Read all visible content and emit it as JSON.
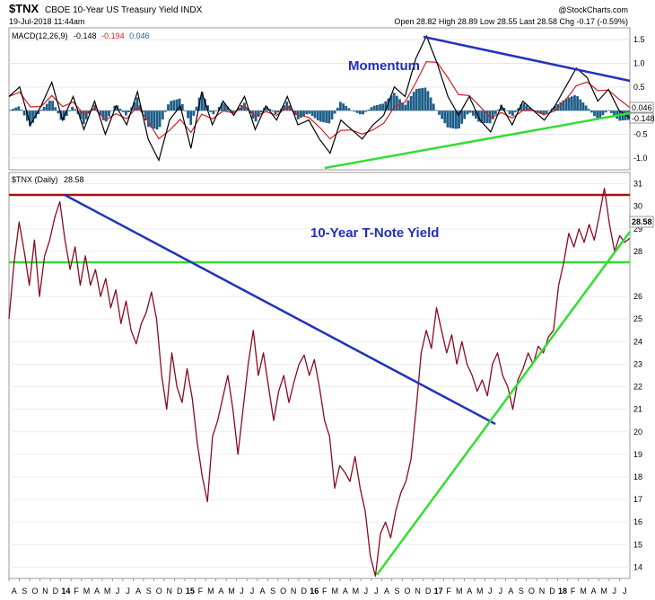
{
  "header": {
    "symbol": "$TNX",
    "name": "CBOE 10-Year US Treasury Yield INDX",
    "date": "19-Jul-2018 11:44am",
    "watermark": "@StockCharts.com",
    "quote": "Open 28.82  High 28.89  Low 28.55  Last 28.58  Chg -0.17 (-0.59%)"
  },
  "chart_data": [
    {
      "type": "line",
      "panel": "macd",
      "legend_label": "MACD(12,26,9)",
      "legend_values": [
        "-0.148",
        "-0.194",
        "0.046"
      ],
      "series_colors": [
        "#000000",
        "#d02020",
        "#1f5f8a"
      ],
      "annotation": "Momentum",
      "annotation_color": "#1f2fbf",
      "yticks": [
        "1.5",
        "1.0",
        "0.5",
        "-0.5",
        "-1.0"
      ],
      "ylim": [
        -1.25,
        1.75
      ],
      "last_labels": [
        "0.046",
        "-0.148"
      ],
      "points": [
        {
          "x": 0.0,
          "y": 0.3
        },
        {
          "x": 1.0,
          "y": 0.5
        },
        {
          "x": 2.0,
          "y": -0.3
        },
        {
          "x": 3.0,
          "y": 0.1
        },
        {
          "x": 4.0,
          "y": 0.6
        },
        {
          "x": 5.0,
          "y": -0.2
        },
        {
          "x": 6.0,
          "y": 0.3
        },
        {
          "x": 7.0,
          "y": -0.4
        },
        {
          "x": 8.0,
          "y": 0.2
        },
        {
          "x": 9.0,
          "y": -0.5
        },
        {
          "x": 10.0,
          "y": 0.1
        },
        {
          "x": 11.0,
          "y": -0.3
        },
        {
          "x": 12.0,
          "y": 0.4
        },
        {
          "x": 13.0,
          "y": -0.6
        },
        {
          "x": 14.0,
          "y": -1.05
        },
        {
          "x": 15.0,
          "y": -0.2
        },
        {
          "x": 16.0,
          "y": 0.1
        },
        {
          "x": 17.0,
          "y": -0.8
        },
        {
          "x": 18.0,
          "y": 0.4
        },
        {
          "x": 19.0,
          "y": -0.3
        },
        {
          "x": 20.0,
          "y": 0.2
        },
        {
          "x": 21.0,
          "y": -0.1
        },
        {
          "x": 22.0,
          "y": 0.3
        },
        {
          "x": 23.0,
          "y": -0.4
        },
        {
          "x": 24.0,
          "y": 0.1
        },
        {
          "x": 25.0,
          "y": -0.2
        },
        {
          "x": 26.0,
          "y": 0.3
        },
        {
          "x": 27.0,
          "y": -0.3
        },
        {
          "x": 28.0,
          "y": -0.2
        },
        {
          "x": 29.0,
          "y": -0.6
        },
        {
          "x": 30.0,
          "y": -0.9
        },
        {
          "x": 31.0,
          "y": -0.2
        },
        {
          "x": 32.0,
          "y": -0.4
        },
        {
          "x": 33.0,
          "y": -0.6
        },
        {
          "x": 34.0,
          "y": -0.3
        },
        {
          "x": 35.0,
          "y": -0.1
        },
        {
          "x": 36.0,
          "y": 0.5
        },
        {
          "x": 37.0,
          "y": 0.3
        },
        {
          "x": 38.0,
          "y": 1.1
        },
        {
          "x": 39.0,
          "y": 1.58
        },
        {
          "x": 40.0,
          "y": 1.0
        },
        {
          "x": 41.0,
          "y": 0.3
        },
        {
          "x": 42.0,
          "y": -0.1
        },
        {
          "x": 43.0,
          "y": 0.3
        },
        {
          "x": 44.0,
          "y": -0.2
        },
        {
          "x": 45.0,
          "y": -0.45
        },
        {
          "x": 46.0,
          "y": 0.1
        },
        {
          "x": 47.0,
          "y": -0.3
        },
        {
          "x": 48.0,
          "y": 0.2
        },
        {
          "x": 49.0,
          "y": 0.0
        },
        {
          "x": 50.0,
          "y": -0.2
        },
        {
          "x": 51.0,
          "y": 0.1
        },
        {
          "x": 52.0,
          "y": 0.5
        },
        {
          "x": 53.0,
          "y": 0.9
        },
        {
          "x": 54.0,
          "y": 0.7
        },
        {
          "x": 55.0,
          "y": 0.2
        },
        {
          "x": 56.0,
          "y": 0.45
        },
        {
          "x": 57.0,
          "y": 0.0
        },
        {
          "x": 58.0,
          "y": -0.148
        }
      ]
    },
    {
      "type": "line",
      "panel": "price",
      "legend_label": "$TNX (Daily)",
      "legend_value": "28.58",
      "series_colors": [
        "#000000",
        "#8b0a1f"
      ],
      "annotation": "10-Year T-Note Yield",
      "annotation_color": "#1f2fbf",
      "yticks": [
        "31",
        "30",
        "29",
        "28",
        "26",
        "25",
        "24",
        "23",
        "22",
        "21",
        "20",
        "19",
        "18",
        "17",
        "16",
        "15",
        "14"
      ],
      "ylim": [
        13.5,
        31.5
      ],
      "last_label": "28.58",
      "x_labels": [
        "A",
        "S",
        "O",
        "N",
        "D",
        "14",
        "F",
        "M",
        "A",
        "M",
        "J",
        "J",
        "A",
        "S",
        "O",
        "N",
        "D",
        "15",
        "F",
        "M",
        "A",
        "M",
        "J",
        "J",
        "A",
        "S",
        "O",
        "N",
        "D",
        "16",
        "F",
        "M",
        "A",
        "M",
        "J",
        "J",
        "A",
        "S",
        "O",
        "N",
        "D",
        "17",
        "F",
        "M",
        "A",
        "M",
        "J",
        "J",
        "A",
        "S",
        "O",
        "N",
        "D",
        "18",
        "F",
        "M",
        "A",
        "M",
        "J",
        "J"
      ],
      "points": [
        {
          "x": 0.0,
          "y": 25.0
        },
        {
          "x": 0.5,
          "y": 27.5
        },
        {
          "x": 1.0,
          "y": 29.3
        },
        {
          "x": 1.5,
          "y": 28.0
        },
        {
          "x": 2.0,
          "y": 26.5
        },
        {
          "x": 2.5,
          "y": 28.5
        },
        {
          "x": 3.0,
          "y": 26.0
        },
        {
          "x": 3.5,
          "y": 27.8
        },
        {
          "x": 4.0,
          "y": 28.5
        },
        {
          "x": 4.5,
          "y": 29.5
        },
        {
          "x": 5.0,
          "y": 30.2
        },
        {
          "x": 5.5,
          "y": 28.5
        },
        {
          "x": 6.0,
          "y": 27.2
        },
        {
          "x": 6.5,
          "y": 28.2
        },
        {
          "x": 7.0,
          "y": 26.5
        },
        {
          "x": 7.5,
          "y": 27.8
        },
        {
          "x": 8.0,
          "y": 26.5
        },
        {
          "x": 8.5,
          "y": 27.2
        },
        {
          "x": 9.0,
          "y": 26.0
        },
        {
          "x": 9.5,
          "y": 26.8
        },
        {
          "x": 10.0,
          "y": 25.5
        },
        {
          "x": 10.5,
          "y": 26.3
        },
        {
          "x": 11.0,
          "y": 24.8
        },
        {
          "x": 11.5,
          "y": 25.8
        },
        {
          "x": 12.0,
          "y": 24.5
        },
        {
          "x": 12.5,
          "y": 23.9
        },
        {
          "x": 13.0,
          "y": 24.8
        },
        {
          "x": 13.5,
          "y": 25.3
        },
        {
          "x": 14.0,
          "y": 26.2
        },
        {
          "x": 14.5,
          "y": 25.0
        },
        {
          "x": 15.0,
          "y": 22.5
        },
        {
          "x": 15.5,
          "y": 21.0
        },
        {
          "x": 16.0,
          "y": 23.5
        },
        {
          "x": 16.5,
          "y": 22.0
        },
        {
          "x": 17.0,
          "y": 21.3
        },
        {
          "x": 17.5,
          "y": 22.8
        },
        {
          "x": 18.0,
          "y": 21.5
        },
        {
          "x": 18.5,
          "y": 19.5
        },
        {
          "x": 19.0,
          "y": 18.0
        },
        {
          "x": 19.5,
          "y": 16.9
        },
        {
          "x": 20.0,
          "y": 19.8
        },
        {
          "x": 20.5,
          "y": 20.5
        },
        {
          "x": 21.0,
          "y": 21.5
        },
        {
          "x": 21.5,
          "y": 22.5
        },
        {
          "x": 22.0,
          "y": 21.0
        },
        {
          "x": 22.5,
          "y": 19.0
        },
        {
          "x": 23.0,
          "y": 21.0
        },
        {
          "x": 23.5,
          "y": 23.0
        },
        {
          "x": 24.0,
          "y": 24.5
        },
        {
          "x": 24.5,
          "y": 22.5
        },
        {
          "x": 25.0,
          "y": 23.5
        },
        {
          "x": 25.5,
          "y": 22.0
        },
        {
          "x": 26.0,
          "y": 20.5
        },
        {
          "x": 26.5,
          "y": 21.8
        },
        {
          "x": 27.0,
          "y": 22.5
        },
        {
          "x": 27.5,
          "y": 21.3
        },
        {
          "x": 28.0,
          "y": 22.2
        },
        {
          "x": 28.5,
          "y": 23.0
        },
        {
          "x": 29.0,
          "y": 23.4
        },
        {
          "x": 29.5,
          "y": 22.5
        },
        {
          "x": 30.0,
          "y": 23.2
        },
        {
          "x": 30.5,
          "y": 22.0
        },
        {
          "x": 31.0,
          "y": 20.5
        },
        {
          "x": 31.5,
          "y": 19.8
        },
        {
          "x": 32.0,
          "y": 17.5
        },
        {
          "x": 32.5,
          "y": 18.5
        },
        {
          "x": 33.0,
          "y": 18.2
        },
        {
          "x": 33.5,
          "y": 17.8
        },
        {
          "x": 34.0,
          "y": 18.9
        },
        {
          "x": 34.5,
          "y": 17.5
        },
        {
          "x": 35.0,
          "y": 16.5
        },
        {
          "x": 35.5,
          "y": 14.5
        },
        {
          "x": 36.0,
          "y": 13.6
        },
        {
          "x": 36.5,
          "y": 15.5
        },
        {
          "x": 37.0,
          "y": 16.0
        },
        {
          "x": 37.5,
          "y": 15.3
        },
        {
          "x": 38.0,
          "y": 16.5
        },
        {
          "x": 38.5,
          "y": 17.3
        },
        {
          "x": 39.0,
          "y": 17.8
        },
        {
          "x": 39.5,
          "y": 18.8
        },
        {
          "x": 40.0,
          "y": 21.0
        },
        {
          "x": 40.5,
          "y": 23.5
        },
        {
          "x": 41.0,
          "y": 24.5
        },
        {
          "x": 41.5,
          "y": 23.7
        },
        {
          "x": 42.0,
          "y": 25.5
        },
        {
          "x": 42.5,
          "y": 24.5
        },
        {
          "x": 43.0,
          "y": 23.5
        },
        {
          "x": 43.5,
          "y": 24.3
        },
        {
          "x": 44.0,
          "y": 23.0
        },
        {
          "x": 44.5,
          "y": 24.0
        },
        {
          "x": 45.0,
          "y": 23.0
        },
        {
          "x": 45.5,
          "y": 22.5
        },
        {
          "x": 46.0,
          "y": 21.8
        },
        {
          "x": 46.5,
          "y": 22.3
        },
        {
          "x": 47.0,
          "y": 21.6
        },
        {
          "x": 47.5,
          "y": 23.0
        },
        {
          "x": 48.0,
          "y": 23.5
        },
        {
          "x": 48.5,
          "y": 22.5
        },
        {
          "x": 49.0,
          "y": 22.0
        },
        {
          "x": 49.5,
          "y": 21.0
        },
        {
          "x": 50.0,
          "y": 22.3
        },
        {
          "x": 50.5,
          "y": 22.8
        },
        {
          "x": 51.0,
          "y": 23.5
        },
        {
          "x": 51.5,
          "y": 23.0
        },
        {
          "x": 52.0,
          "y": 23.8
        },
        {
          "x": 52.5,
          "y": 23.5
        },
        {
          "x": 53.0,
          "y": 24.2
        },
        {
          "x": 53.5,
          "y": 24.5
        },
        {
          "x": 54.0,
          "y": 26.5
        },
        {
          "x": 54.5,
          "y": 27.5
        },
        {
          "x": 55.0,
          "y": 28.8
        },
        {
          "x": 55.5,
          "y": 28.2
        },
        {
          "x": 56.0,
          "y": 29.0
        },
        {
          "x": 56.5,
          "y": 28.4
        },
        {
          "x": 57.0,
          "y": 29.2
        },
        {
          "x": 57.5,
          "y": 28.5
        },
        {
          "x": 58.0,
          "y": 29.6
        },
        {
          "x": 58.5,
          "y": 30.8
        },
        {
          "x": 59.0,
          "y": 29.2
        },
        {
          "x": 59.5,
          "y": 28.0
        },
        {
          "x": 60.0,
          "y": 28.7
        },
        {
          "x": 60.5,
          "y": 28.4
        },
        {
          "x": 61.0,
          "y": 28.58
        }
      ]
    }
  ]
}
